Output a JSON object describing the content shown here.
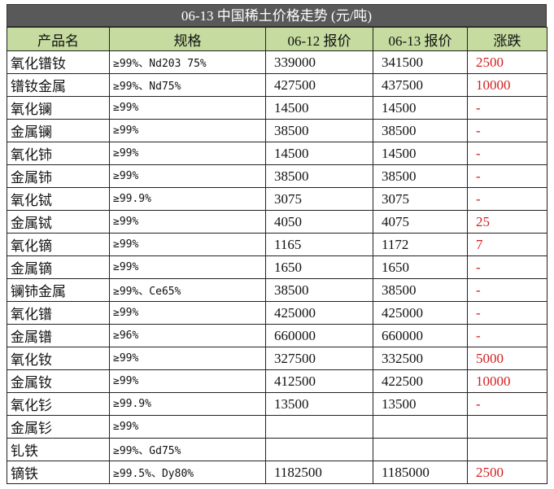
{
  "title": "06-13 中国稀土价格走势 (元/吨)",
  "table": {
    "header": [
      "产品名",
      "规格",
      "06-12 报价",
      "06-13 报价",
      "涨跌"
    ],
    "rows": [
      [
        "氧化镨钕",
        "≥99%、Nd203 75%",
        "339000",
        "341500",
        "2500"
      ],
      [
        "镨钕金属",
        "≥99%、Nd75%",
        "427500",
        "437500",
        "10000"
      ],
      [
        "氧化镧",
        "≥99%",
        "14500",
        "14500",
        "-"
      ],
      [
        "金属镧",
        "≥99%",
        "38500",
        "38500",
        "-"
      ],
      [
        "氧化铈",
        "≥99%",
        "14500",
        "14500",
        "-"
      ],
      [
        "金属铈",
        "≥99%",
        "38500",
        "38500",
        "-"
      ],
      [
        "氧化铽",
        "≥99.9%",
        "3075",
        "3075",
        "-"
      ],
      [
        "金属铽",
        "≥99%",
        "4050",
        "4075",
        "25"
      ],
      [
        "氧化镝",
        "≥99%",
        "1165",
        "1172",
        "7"
      ],
      [
        "金属镝",
        "≥99%",
        "1650",
        "1650",
        "-"
      ],
      [
        "镧铈金属",
        "≥99%、Ce65%",
        "38500",
        "38500",
        "-"
      ],
      [
        "氧化镨",
        "≥99%",
        "425000",
        "425000",
        "-"
      ],
      [
        "金属镨",
        "≥96%",
        "660000",
        "660000",
        "-"
      ],
      [
        "氧化钕",
        "≥99%",
        "327500",
        "332500",
        "5000"
      ],
      [
        "金属钕",
        "≥99%",
        "412500",
        "422500",
        "10000"
      ],
      [
        "氧化钐",
        "≥99.9%",
        "13500",
        "13500",
        "-"
      ],
      [
        "金属钐",
        "≥99%"
      ],
      [
        "钆铁",
        "≥99%、Gd75%"
      ],
      [
        "镝铁",
        "≥99.5%、Dy80%",
        "1182500",
        "1185000",
        "2500"
      ]
    ]
  }
}
